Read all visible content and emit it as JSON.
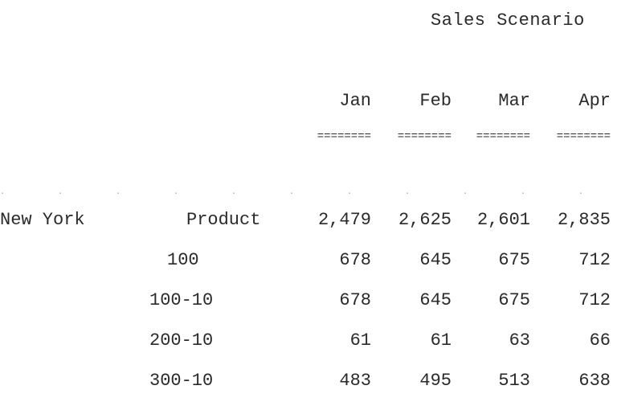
{
  "title": "Sales Scenario",
  "columns": [
    "Jan",
    "Feb",
    "Mar",
    "Apr"
  ],
  "separator": "========",
  "market": "New York",
  "rows": [
    {
      "label": "Product",
      "values": [
        "2,479",
        "2,625",
        "2,601",
        "2,835"
      ]
    },
    {
      "label": "100",
      "values": [
        "678",
        "645",
        "675",
        "712"
      ]
    },
    {
      "label": "100-10",
      "values": [
        "678",
        "645",
        "675",
        "712"
      ]
    },
    {
      "label": "200-10",
      "values": [
        "61",
        "61",
        "63",
        "66"
      ]
    },
    {
      "label": "300-10",
      "values": [
        "483",
        "495",
        "513",
        "638"
      ]
    }
  ]
}
